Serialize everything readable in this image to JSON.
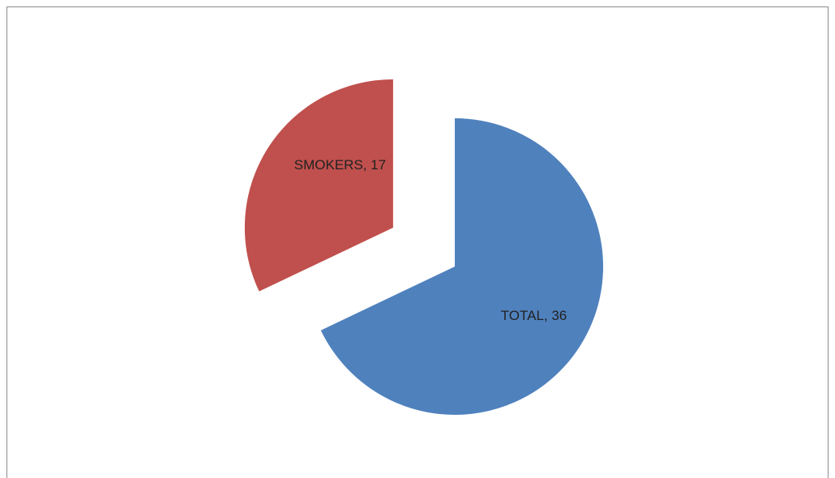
{
  "chart_data": {
    "type": "pie",
    "values": [
      36,
      17
    ],
    "value_labels": [
      "TOTAL, 36",
      "SMOKERS, 17"
    ],
    "colors": [
      "#4f81bd",
      "#c0504d"
    ]
  }
}
